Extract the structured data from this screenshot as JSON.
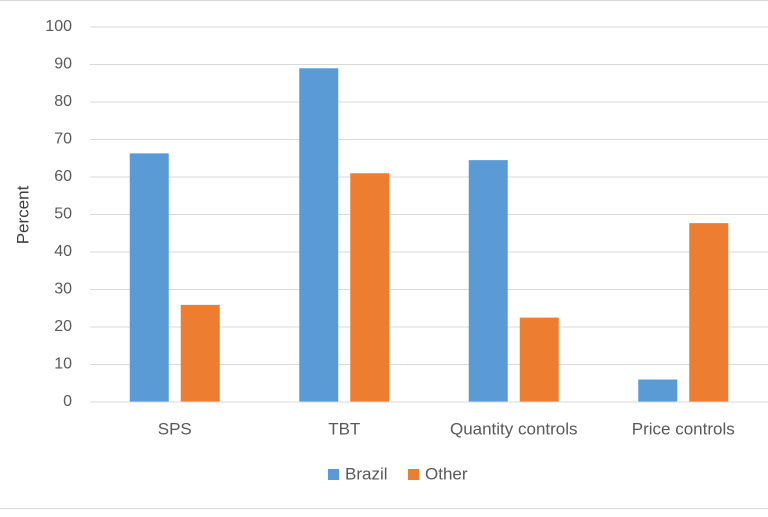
{
  "chart_data": {
    "type": "bar",
    "title": "",
    "xlabel": "",
    "ylabel": "Percent",
    "ylim": [
      0,
      100
    ],
    "yticks": [
      0,
      10,
      20,
      30,
      40,
      50,
      60,
      70,
      80,
      90,
      100
    ],
    "categories": [
      "SPS",
      "TBT",
      "Quantity controls",
      "Price controls"
    ],
    "series": [
      {
        "name": "Brazil",
        "color": "#5B9BD5",
        "values": [
          66.3,
          89,
          64.5,
          6
        ]
      },
      {
        "name": "Other",
        "color": "#ED7D31",
        "values": [
          25.9,
          61,
          22.5,
          47.7
        ]
      }
    ],
    "grid": true,
    "legend": "bottom-center"
  }
}
